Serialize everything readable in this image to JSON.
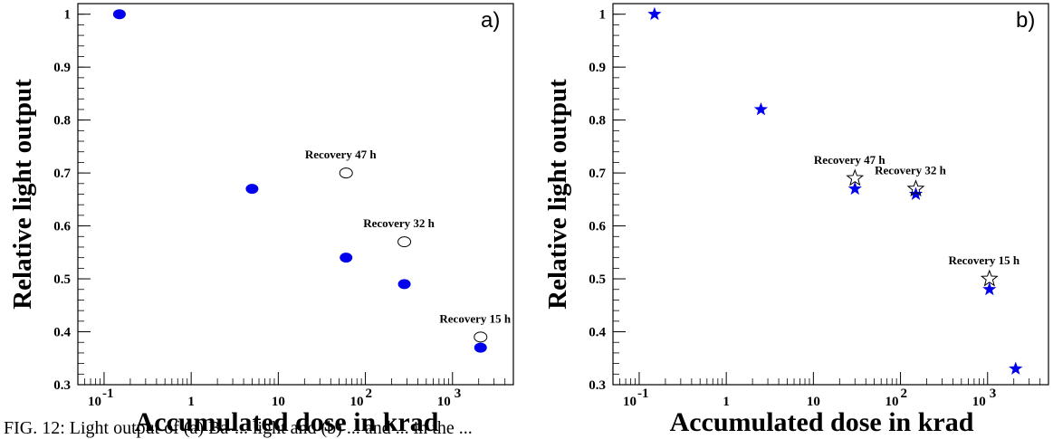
{
  "caption": "FIG. 12: Light output of (a) Ba-... light and (b) ... and ... in the ...",
  "chart_data": [
    {
      "type": "scatter",
      "panel_label": "a)",
      "xlabel": "Accumulated dose in krad",
      "ylabel": "Relative light output",
      "xscale": "log",
      "xlim": [
        0.05,
        5000
      ],
      "ylim": [
        0.3,
        1.02
      ],
      "x_ticks": [
        "10",
        "-1",
        "1",
        "10",
        "10",
        "2",
        "10",
        "3"
      ],
      "x_tick_values": [
        0.1,
        1,
        10,
        100,
        1000
      ],
      "y_ticks": [
        "0.3",
        "0.4",
        "0.5",
        "0.6",
        "0.7",
        "0.8",
        "0.9",
        "1"
      ],
      "y_tick_values": [
        0.3,
        0.4,
        0.5,
        0.6,
        0.7,
        0.8,
        0.9,
        1.0
      ],
      "color": "#0000ee",
      "series": [
        {
          "marker": "filled-circle",
          "x": [
            0.15,
            5,
            60,
            280,
            2100
          ],
          "y": [
            1.0,
            0.67,
            0.54,
            0.49,
            0.37
          ]
        },
        {
          "marker": "open-circle",
          "x": [
            60,
            280,
            2100
          ],
          "y": [
            0.7,
            0.57,
            0.39
          ]
        }
      ],
      "annotations": [
        {
          "text": "Recovery 47 h",
          "x": 60,
          "y": 0.7
        },
        {
          "text": "Recovery 32 h",
          "x": 280,
          "y": 0.57
        },
        {
          "text": "Recovery 15 h",
          "x": 2100,
          "y": 0.39
        }
      ]
    },
    {
      "type": "scatter",
      "panel_label": "b)",
      "xlabel": "Accumulated dose in krad",
      "ylabel": "Relative light output",
      "xscale": "log",
      "xlim": [
        0.05,
        5000
      ],
      "ylim": [
        0.3,
        1.02
      ],
      "x_ticks": [
        "10",
        "-1",
        "1",
        "10",
        "10",
        "2",
        "10",
        "3"
      ],
      "x_tick_values": [
        0.1,
        1,
        10,
        100,
        1000
      ],
      "y_ticks": [
        "0.3",
        "0.4",
        "0.5",
        "0.6",
        "0.7",
        "0.8",
        "0.9",
        "1"
      ],
      "y_tick_values": [
        0.3,
        0.4,
        0.5,
        0.6,
        0.7,
        0.8,
        0.9,
        1.0
      ],
      "color": "#0000ee",
      "series": [
        {
          "marker": "filled-star",
          "x": [
            0.15,
            2.5,
            30,
            150,
            1050,
            2100
          ],
          "y": [
            1.0,
            0.82,
            0.67,
            0.66,
            0.48,
            0.33
          ]
        },
        {
          "marker": "open-star",
          "x": [
            30,
            150,
            1050
          ],
          "y": [
            0.69,
            0.67,
            0.5
          ]
        }
      ],
      "annotations": [
        {
          "text": "Recovery 47 h",
          "x": 30,
          "y": 0.69
        },
        {
          "text": "Recovery 32 h",
          "x": 150,
          "y": 0.67
        },
        {
          "text": "Recovery 15 h",
          "x": 1050,
          "y": 0.5
        }
      ]
    }
  ]
}
